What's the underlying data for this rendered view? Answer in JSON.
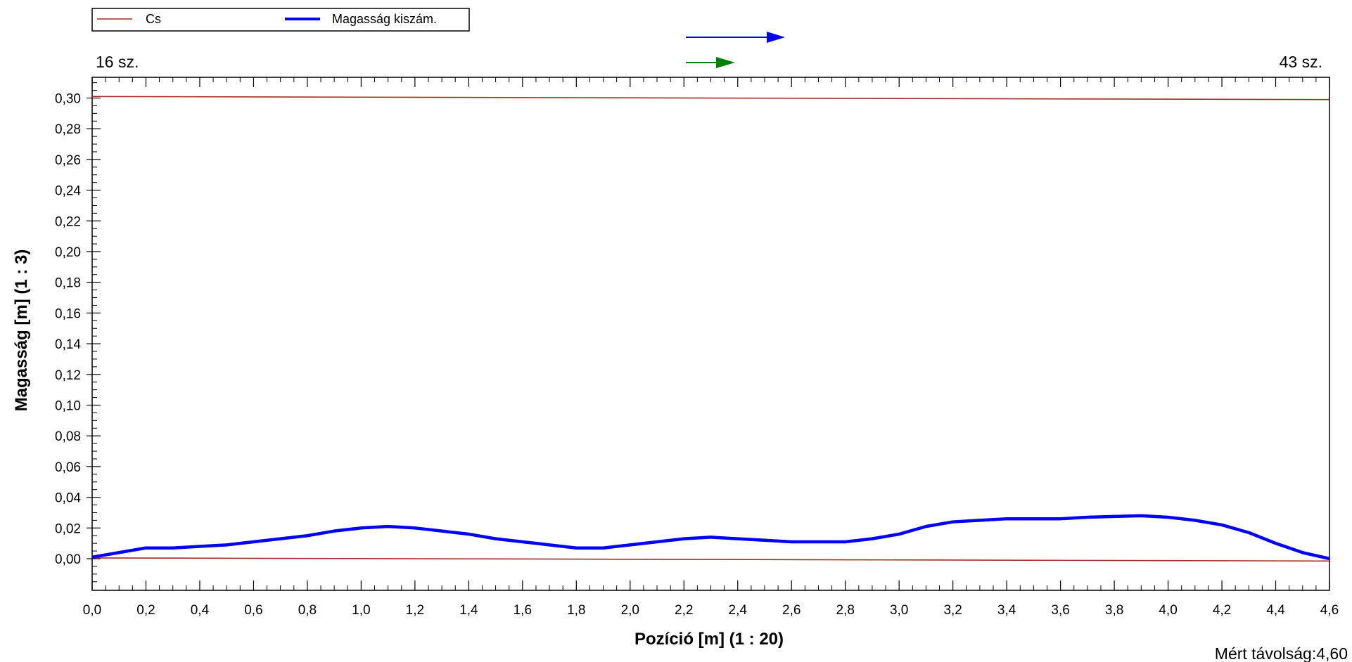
{
  "chart_data": {
    "type": "line",
    "xlabel": "Pozíció [m] (1 : 20)",
    "ylabel": "Magasság [m] (1 : 3)",
    "xlim": [
      0,
      4.6
    ],
    "ylim": [
      -0.02,
      0.31
    ],
    "x_ticks": [
      "0,0",
      "0,2",
      "0,4",
      "0,6",
      "0,8",
      "1,0",
      "1,2",
      "1,4",
      "1,6",
      "1,8",
      "2,0",
      "2,2",
      "2,4",
      "2,6",
      "2,8",
      "3,0",
      "3,2",
      "3,4",
      "3,6",
      "3,8",
      "4,0",
      "4,2",
      "4,4",
      "4,6"
    ],
    "y_ticks": [
      "0,00",
      "0,02",
      "0,04",
      "0,06",
      "0,08",
      "0,10",
      "0,12",
      "0,14",
      "0,16",
      "0,18",
      "0,20",
      "0,22",
      "0,24",
      "0,26",
      "0,28",
      "0,30"
    ],
    "grid": false,
    "legend_position": "top-left",
    "series": [
      {
        "name": "Cs",
        "color": "#a52a2a",
        "segments": [
          {
            "x": [
              0.0,
              4.6
            ],
            "y": [
              0.301,
              0.299
            ]
          },
          {
            "x": [
              0.0,
              4.6
            ],
            "y": [
              0.0005,
              -0.0015
            ]
          }
        ]
      },
      {
        "name": "Magasság kiszám.",
        "color": "#0000ff",
        "x": [
          0.0,
          0.1,
          0.2,
          0.3,
          0.4,
          0.5,
          0.6,
          0.7,
          0.8,
          0.9,
          1.0,
          1.1,
          1.2,
          1.3,
          1.4,
          1.5,
          1.6,
          1.7,
          1.8,
          1.9,
          2.0,
          2.1,
          2.2,
          2.3,
          2.4,
          2.5,
          2.6,
          2.7,
          2.8,
          2.9,
          3.0,
          3.1,
          3.2,
          3.3,
          3.4,
          3.5,
          3.6,
          3.7,
          3.8,
          3.9,
          4.0,
          4.1,
          4.2,
          4.3,
          4.4,
          4.5,
          4.6
        ],
        "y": [
          0.001,
          0.004,
          0.007,
          0.007,
          0.008,
          0.009,
          0.011,
          0.013,
          0.015,
          0.018,
          0.02,
          0.021,
          0.02,
          0.018,
          0.016,
          0.013,
          0.011,
          0.009,
          0.007,
          0.007,
          0.009,
          0.011,
          0.013,
          0.014,
          0.013,
          0.012,
          0.011,
          0.011,
          0.011,
          0.013,
          0.016,
          0.021,
          0.024,
          0.025,
          0.026,
          0.026,
          0.026,
          0.027,
          0.0275,
          0.028,
          0.027,
          0.025,
          0.022,
          0.017,
          0.01,
          0.004,
          0.0
        ]
      }
    ]
  },
  "legend": {
    "items": [
      {
        "label": "Cs",
        "color": "#a52a2a"
      },
      {
        "label": "Magasság  kiszám.",
        "color": "#0000ff"
      }
    ]
  },
  "annotations": {
    "left_label": "16 sz.",
    "right_label": "43 sz.",
    "measured_distance": "Mért  távolság:4,60",
    "arrow_colors": [
      "#0000ff",
      "#008000"
    ]
  }
}
